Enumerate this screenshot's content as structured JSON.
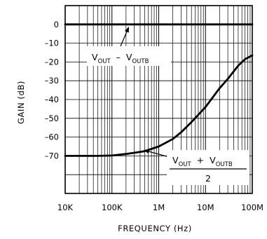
{
  "chart_data": {
    "type": "line",
    "title": "",
    "xlabel": "FREQUENCY (Hz)",
    "ylabel": "GAIN (dB)",
    "x_scale": "log",
    "xlim": [
      10000,
      100000000
    ],
    "ylim": [
      -90,
      10
    ],
    "grid": true,
    "x_tick_values": [
      10000,
      100000,
      1000000,
      10000000,
      100000000
    ],
    "x_tick_labels": [
      "10K",
      "100K",
      "1M",
      "10M",
      "100M"
    ],
    "y_tick_values": [
      0,
      -10,
      -20,
      -30,
      -40,
      -50,
      -60,
      -70
    ],
    "y_tick_labels": [
      "0",
      "–10",
      "–20",
      "–30",
      "–40",
      "–50",
      "–60",
      "–70"
    ],
    "series": [
      {
        "name": "VOUT – VOUTB",
        "x": [
          10000,
          100000,
          1000000,
          10000000,
          100000000
        ],
        "y": [
          0,
          0,
          0,
          0,
          0
        ]
      },
      {
        "name": "(VOUT + VOUTB) / 2",
        "x": [
          10000,
          50000,
          100000,
          200000,
          500000,
          1000000,
          2000000,
          3000000,
          5000000,
          10000000,
          20000000,
          30000000,
          50000000,
          70000000,
          100000000
        ],
        "y": [
          -70,
          -70,
          -69.8,
          -69,
          -67.5,
          -65,
          -61,
          -57.5,
          -52,
          -44,
          -34,
          -29,
          -22,
          -18.5,
          -16.5
        ]
      }
    ],
    "annotations": {
      "a1": {
        "v": "V",
        "sub1": "OUT",
        "op": "–",
        "sub2": "OUTB"
      },
      "a2": {
        "v": "V",
        "sub1": "OUT",
        "op": "+",
        "sub2": "OUTB",
        "den": "2"
      }
    }
  }
}
